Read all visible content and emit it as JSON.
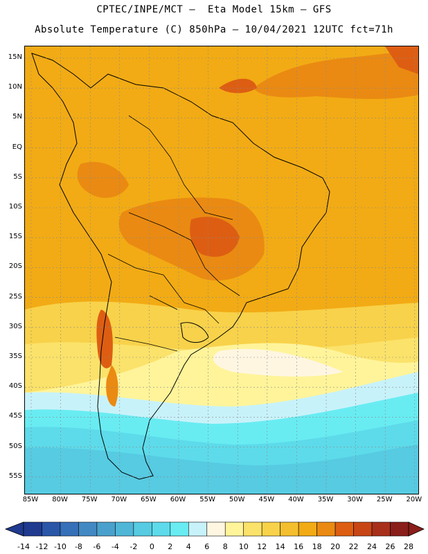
{
  "header": {
    "title_line1": "CPTEC/INPE/MCT –  Eta Model 15km – GFS",
    "title_line2": "Absolute Temperature (C) 850hPa – 10/04/2021 12UTC fct=71h"
  },
  "map": {
    "lat_labels": [
      "15N",
      "10N",
      "5N",
      "EQ",
      "5S",
      "10S",
      "15S",
      "20S",
      "25S",
      "30S",
      "35S",
      "40S",
      "45S",
      "50S",
      "55S"
    ],
    "lon_labels": [
      "85W",
      "80W",
      "75W",
      "70W",
      "65W",
      "60W",
      "55W",
      "50W",
      "45W",
      "40W",
      "35W",
      "30W",
      "25W",
      "20W"
    ]
  },
  "colorbar": {
    "labels": [
      "-14",
      "-12",
      "-10",
      "-8",
      "-6",
      "-4",
      "-2",
      "0",
      "2",
      "4",
      "6",
      "8",
      "10",
      "12",
      "14",
      "16",
      "18",
      "20",
      "22",
      "24",
      "26",
      "28"
    ],
    "colors": [
      "#1f3a8f",
      "#2a56a8",
      "#3670b8",
      "#4289c4",
      "#4aa0cc",
      "#4fb6d8",
      "#56cbe2",
      "#5ddbea",
      "#68ecf2",
      "#c8f2fa",
      "#fff6e2",
      "#fff49a",
      "#fbe26a",
      "#f8d24a",
      "#f4bf2e",
      "#f2ab14",
      "#ea8a12",
      "#dd5e12",
      "#c84616",
      "#a8301a",
      "#8a1e1a"
    ]
  }
}
